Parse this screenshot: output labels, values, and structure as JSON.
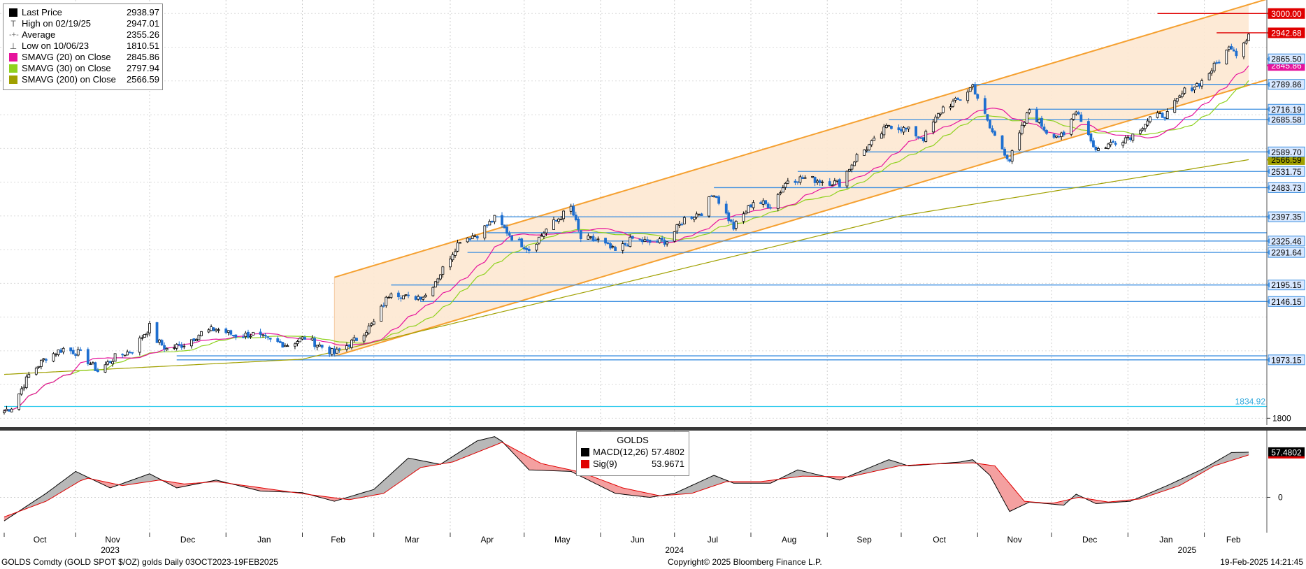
{
  "legend": {
    "items": [
      {
        "label": "Last Price",
        "value": "2938.97",
        "symbol": "square",
        "color": "#000000"
      },
      {
        "label": "High on 02/19/25",
        "value": "2947.01",
        "symbol": "high",
        "color": "#555555"
      },
      {
        "label": "Average",
        "value": "2355.26",
        "symbol": "avg",
        "color": "#777777"
      },
      {
        "label": "Low on 10/06/23",
        "value": "1810.51",
        "symbol": "low",
        "color": "#555555"
      },
      {
        "label": "SMAVG (20)  on Close",
        "value": "2845.86",
        "symbol": "square",
        "color": "#e6139c"
      },
      {
        "label": "SMAVG (30)  on Close",
        "value": "2797.94",
        "symbol": "square",
        "color": "#8fd21e"
      },
      {
        "label": "SMAVG (200)  on Close",
        "value": "2566.59",
        "symbol": "square",
        "color": "#a0a000"
      }
    ]
  },
  "macd_legend": {
    "title": "GOLDS",
    "items": [
      {
        "label": "MACD(12,26)",
        "value": "57.4802",
        "color": "#000000"
      },
      {
        "label": "Sig(9)",
        "value": "53.9671",
        "color": "#e00000"
      }
    ]
  },
  "footer": {
    "left": "GOLDS Comdty (GOLD SPOT $/OZ) golds  Daily 03OCT2023-19FEB2025",
    "center": "Copyright© 2025 Bloomberg Finance L.P.",
    "right": "19-Feb-2025 14:21:45"
  },
  "chart_data": [
    {
      "type": "candlestick",
      "title": "GOLDS Comdty (GOLD SPOT $/OZ) golds",
      "ylim": [
        1780,
        3040
      ],
      "y_ticks": [
        1800
      ],
      "x_months": [
        "Oct",
        "Nov",
        "Dec",
        "Jan",
        "Feb",
        "Mar",
        "Apr",
        "May",
        "Jun",
        "Jul",
        "Aug",
        "Sep",
        "Oct",
        "Nov",
        "Dec",
        "Jan",
        "Feb"
      ],
      "x_years": [
        "2023",
        "2024",
        "2025"
      ],
      "close_anchors": [
        [
          "2023-10-03",
          1822
        ],
        [
          "2023-10-06",
          1833
        ],
        [
          "2023-10-13",
          1928
        ],
        [
          "2023-10-20",
          1981
        ],
        [
          "2023-10-27",
          2006
        ],
        [
          "2023-11-03",
          1992
        ],
        [
          "2023-11-10",
          1940
        ],
        [
          "2023-11-17",
          1981
        ],
        [
          "2023-11-24",
          2002
        ],
        [
          "2023-12-01",
          2072
        ],
        [
          "2023-12-04",
          2030
        ],
        [
          "2023-12-08",
          2005
        ],
        [
          "2023-12-15",
          2020
        ],
        [
          "2023-12-22",
          2053
        ],
        [
          "2023-12-28",
          2065
        ],
        [
          "2024-01-05",
          2045
        ],
        [
          "2024-01-12",
          2049
        ],
        [
          "2024-01-19",
          2029
        ],
        [
          "2024-01-26",
          2018
        ],
        [
          "2024-02-02",
          2039
        ],
        [
          "2024-02-14",
          1992
        ],
        [
          "2024-02-23",
          2035
        ],
        [
          "2024-03-01",
          2083
        ],
        [
          "2024-03-08",
          2179
        ],
        [
          "2024-03-15",
          2156
        ],
        [
          "2024-03-22",
          2165
        ],
        [
          "2024-03-28",
          2230
        ],
        [
          "2024-04-05",
          2330
        ],
        [
          "2024-04-12",
          2345
        ],
        [
          "2024-04-19",
          2392
        ],
        [
          "2024-04-26",
          2338
        ],
        [
          "2024-05-03",
          2301
        ],
        [
          "2024-05-10",
          2360
        ],
        [
          "2024-05-20",
          2425
        ],
        [
          "2024-05-24",
          2333
        ],
        [
          "2024-05-31",
          2327
        ],
        [
          "2024-06-07",
          2294
        ],
        [
          "2024-06-14",
          2332
        ],
        [
          "2024-06-21",
          2321
        ],
        [
          "2024-06-28",
          2326
        ],
        [
          "2024-07-05",
          2391
        ],
        [
          "2024-07-12",
          2411
        ],
        [
          "2024-07-17",
          2470
        ],
        [
          "2024-07-25",
          2365
        ],
        [
          "2024-08-02",
          2443
        ],
        [
          "2024-08-09",
          2431
        ],
        [
          "2024-08-16",
          2507
        ],
        [
          "2024-08-23",
          2512
        ],
        [
          "2024-08-30",
          2503
        ],
        [
          "2024-09-06",
          2497
        ],
        [
          "2024-09-13",
          2577
        ],
        [
          "2024-09-20",
          2621
        ],
        [
          "2024-09-26",
          2670
        ],
        [
          "2024-10-04",
          2653
        ],
        [
          "2024-10-10",
          2630
        ],
        [
          "2024-10-18",
          2721
        ],
        [
          "2024-10-25",
          2746
        ],
        [
          "2024-10-30",
          2787
        ],
        [
          "2024-11-06",
          2660
        ],
        [
          "2024-11-14",
          2565
        ],
        [
          "2024-11-22",
          2716
        ],
        [
          "2024-11-29",
          2650
        ],
        [
          "2024-12-06",
          2633
        ],
        [
          "2024-12-11",
          2718
        ],
        [
          "2024-12-19",
          2595
        ],
        [
          "2024-12-27",
          2621
        ],
        [
          "2025-01-03",
          2640
        ],
        [
          "2025-01-10",
          2690
        ],
        [
          "2025-01-17",
          2702
        ],
        [
          "2025-01-24",
          2770
        ],
        [
          "2025-01-31",
          2798
        ],
        [
          "2025-02-07",
          2861
        ],
        [
          "2025-02-12",
          2905
        ],
        [
          "2025-02-14",
          2883
        ],
        [
          "2025-02-19",
          2939
        ]
      ],
      "sma_200_anchors": [
        [
          "2023-10-03",
          1930
        ],
        [
          "2024-02-01",
          1975
        ],
        [
          "2024-06-01",
          2185
        ],
        [
          "2024-10-01",
          2400
        ],
        [
          "2025-02-19",
          2566.59
        ]
      ],
      "channel": {
        "lower": [
          [
            "2024-02-14",
            1984
          ],
          [
            "2025-02-19",
            2789
          ]
        ],
        "upper": [
          [
            "2024-02-14",
            2218
          ],
          [
            "2025-02-19",
            3028
          ]
        ],
        "start_date": "2024-02-14"
      },
      "horizontal_levels": [
        {
          "value": 2789.86,
          "from": "2024-10-30"
        },
        {
          "value": 2716.19,
          "from": "2024-11-22"
        },
        {
          "value": 2685.58,
          "from": "2024-09-26"
        },
        {
          "value": 2589.7,
          "from": "2024-09-16"
        },
        {
          "value": 2531.75,
          "from": "2024-08-20"
        },
        {
          "value": 2483.73,
          "from": "2024-07-17"
        },
        {
          "value": 2397.35,
          "from": "2024-04-19"
        },
        {
          "value": 2350,
          "from": "2024-04-16"
        },
        {
          "value": 2325.46,
          "from": "2024-04-08"
        },
        {
          "value": 2291.64,
          "from": "2024-04-08"
        },
        {
          "value": 2195.15,
          "from": "2024-03-08"
        },
        {
          "value": 2146.15,
          "from": "2024-03-20"
        },
        {
          "value": 1985,
          "from": "2023-12-12"
        },
        {
          "value": 1973.15,
          "from": "2023-12-12"
        },
        {
          "value": 1834.92,
          "from": "2023-10-03",
          "color": "#33ccee"
        }
      ],
      "red_levels": [
        {
          "value": 3000,
          "from": "2025-01-13"
        },
        {
          "value": 2942.68,
          "from": "2025-02-06"
        }
      ],
      "right_labels": [
        {
          "text": "3000.00",
          "value": 3000,
          "bg": "#e00000",
          "fg": "#ffffff"
        },
        {
          "text": "2942.68",
          "value": 2942.68,
          "bg": "#e00000",
          "fg": "#ffffff"
        },
        {
          "text": "2845.86",
          "value": 2845.86,
          "bg": "#e6139c",
          "fg": "#ffffff"
        },
        {
          "text": "2865.50",
          "value": 2865.5,
          "bg": "#d8e8ff",
          "fg": "#000000"
        },
        {
          "text": "2789.86",
          "value": 2789.86,
          "bg": "#d8e8ff",
          "fg": "#000000"
        },
        {
          "text": "2716.19",
          "value": 2716.19,
          "bg": "#d8e8ff",
          "fg": "#000000"
        },
        {
          "text": "2685.58",
          "value": 2685.58,
          "bg": "#d8e8ff",
          "fg": "#000000"
        },
        {
          "text": "2566.59",
          "value": 2566.59,
          "bg": "#a0a000",
          "fg": "#000000"
        },
        {
          "text": "2589.70",
          "value": 2589.7,
          "bg": "#d8e8ff",
          "fg": "#000000"
        },
        {
          "text": "2531.75",
          "value": 2531.75,
          "bg": "#d8e8ff",
          "fg": "#000000"
        },
        {
          "text": "2483.73",
          "value": 2483.73,
          "bg": "#d8e8ff",
          "fg": "#000000"
        },
        {
          "text": "2397.35",
          "value": 2397.35,
          "bg": "#d8e8ff",
          "fg": "#000000"
        },
        {
          "text": "2325.46",
          "value": 2325.46,
          "bg": "#d8e8ff",
          "fg": "#000000"
        },
        {
          "text": "2291.64",
          "value": 2291.64,
          "bg": "#d8e8ff",
          "fg": "#000000"
        },
        {
          "text": "2195.15",
          "value": 2195.15,
          "bg": "#d8e8ff",
          "fg": "#000000"
        },
        {
          "text": "2146.15",
          "value": 2146.15,
          "bg": "#d8e8ff",
          "fg": "#000000"
        },
        {
          "text": "1973.15",
          "value": 1973.15,
          "bg": "#d8e8ff",
          "fg": "#000000"
        }
      ],
      "level_label_1834": "1834.92"
    },
    {
      "type": "line",
      "title": "GOLDS",
      "ylim": [
        -45,
        85
      ],
      "y_ticks": [
        0
      ],
      "last_value_label": "57.4802",
      "series": [
        {
          "name": "MACD(12,26)",
          "color": "#000000",
          "anchors": [
            [
              "2023-10-03",
              -30
            ],
            [
              "2023-10-20",
              5
            ],
            [
              "2023-11-01",
              33
            ],
            [
              "2023-11-15",
              12
            ],
            [
              "2023-12-01",
              30
            ],
            [
              "2023-12-12",
              12
            ],
            [
              "2023-12-28",
              22
            ],
            [
              "2024-01-15",
              8
            ],
            [
              "2024-02-01",
              6
            ],
            [
              "2024-02-14",
              -5
            ],
            [
              "2024-03-01",
              10
            ],
            [
              "2024-03-15",
              50
            ],
            [
              "2024-03-28",
              42
            ],
            [
              "2024-04-12",
              72
            ],
            [
              "2024-04-20",
              78
            ],
            [
              "2024-05-03",
              35
            ],
            [
              "2024-05-20",
              33
            ],
            [
              "2024-06-07",
              5
            ],
            [
              "2024-06-21",
              0
            ],
            [
              "2024-07-01",
              5
            ],
            [
              "2024-07-17",
              28
            ],
            [
              "2024-07-25",
              18
            ],
            [
              "2024-08-09",
              18
            ],
            [
              "2024-08-20",
              35
            ],
            [
              "2024-09-06",
              22
            ],
            [
              "2024-09-26",
              48
            ],
            [
              "2024-10-04",
              40
            ],
            [
              "2024-10-25",
              45
            ],
            [
              "2024-10-30",
              48
            ],
            [
              "2024-11-06",
              28
            ],
            [
              "2024-11-14",
              -18
            ],
            [
              "2024-11-22",
              -6
            ],
            [
              "2024-12-06",
              -10
            ],
            [
              "2024-12-11",
              4
            ],
            [
              "2024-12-19",
              -8
            ],
            [
              "2025-01-02",
              -5
            ],
            [
              "2025-01-17",
              15
            ],
            [
              "2025-02-01",
              37
            ],
            [
              "2025-02-12",
              57
            ],
            [
              "2025-02-19",
              57.48
            ]
          ]
        },
        {
          "name": "Sig(9)",
          "color": "#e00000",
          "anchors": [
            [
              "2023-10-03",
              -25
            ],
            [
              "2023-10-20",
              -5
            ],
            [
              "2023-11-05",
              25
            ],
            [
              "2023-11-20",
              15
            ],
            [
              "2023-12-05",
              22
            ],
            [
              "2023-12-15",
              17
            ],
            [
              "2023-12-28",
              20
            ],
            [
              "2024-01-20",
              10
            ],
            [
              "2024-02-05",
              3
            ],
            [
              "2024-02-20",
              -3
            ],
            [
              "2024-03-05",
              5
            ],
            [
              "2024-03-20",
              38
            ],
            [
              "2024-04-02",
              45
            ],
            [
              "2024-04-22",
              70
            ],
            [
              "2024-05-08",
              43
            ],
            [
              "2024-05-24",
              32
            ],
            [
              "2024-06-10",
              12
            ],
            [
              "2024-06-25",
              2
            ],
            [
              "2024-07-08",
              5
            ],
            [
              "2024-07-22",
              20
            ],
            [
              "2024-08-05",
              20
            ],
            [
              "2024-08-22",
              27
            ],
            [
              "2024-09-10",
              26
            ],
            [
              "2024-09-30",
              40
            ],
            [
              "2024-10-10",
              42
            ],
            [
              "2024-10-30",
              44
            ],
            [
              "2024-11-08",
              40
            ],
            [
              "2024-11-20",
              -5
            ],
            [
              "2024-12-01",
              -8
            ],
            [
              "2024-12-12",
              0
            ],
            [
              "2024-12-24",
              -6
            ],
            [
              "2025-01-06",
              -2
            ],
            [
              "2025-01-22",
              15
            ],
            [
              "2025-02-05",
              40
            ],
            [
              "2025-02-19",
              53.97
            ]
          ]
        }
      ]
    }
  ]
}
